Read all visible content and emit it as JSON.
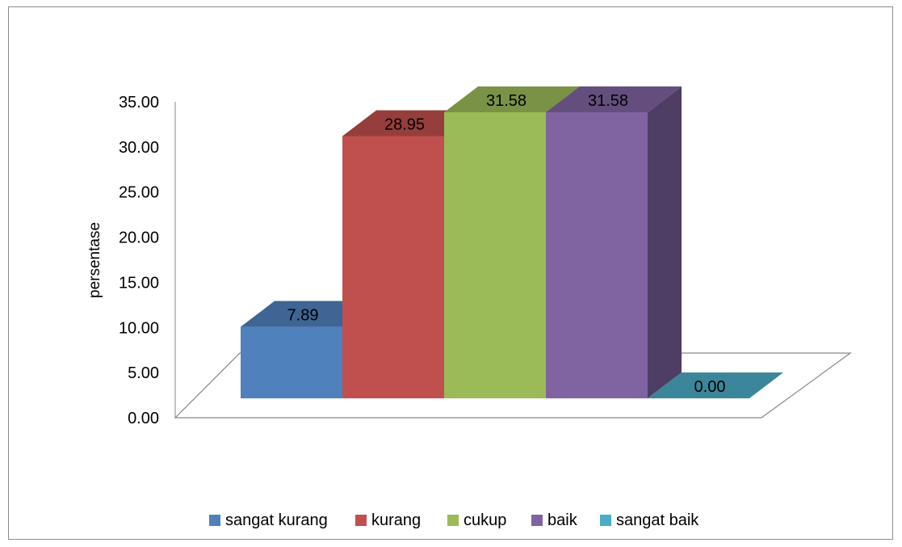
{
  "chart_data": {
    "type": "bar",
    "ylabel": "persentase",
    "ylim": [
      0,
      35
    ],
    "ytick_labels": [
      "0.00",
      "5.00",
      "10.00",
      "15.00",
      "20.00",
      "25.00",
      "30.00",
      "35.00"
    ],
    "legend_position": "bottom",
    "series": [
      {
        "name": "sangat kurang",
        "value": 7.89,
        "label": "7.89",
        "color": "#4F81BD"
      },
      {
        "name": "kurang",
        "value": 28.95,
        "label": "28.95",
        "color": "#C0504D"
      },
      {
        "name": "cukup",
        "value": 31.58,
        "label": "31.58",
        "color": "#9BBB59"
      },
      {
        "name": "baik",
        "value": 31.58,
        "label": "31.58",
        "color": "#8064A2"
      },
      {
        "name": "sangat baik",
        "value": 0.0,
        "label": "0.00",
        "color": "#4BACC6"
      }
    ]
  }
}
